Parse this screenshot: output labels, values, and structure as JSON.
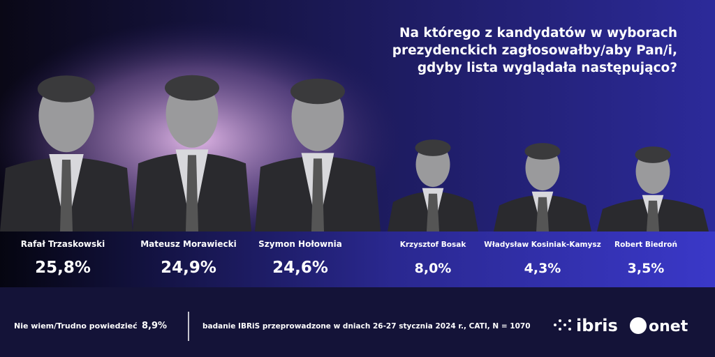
{
  "header": {
    "title_lines": [
      "Na którego z kandydatów w wyborach",
      "prezydenckich zagłosowałby/aby Pan/i,",
      "gdyby lista wyglądała następująco?"
    ]
  },
  "candidates": [
    {
      "name": "Rafał Trzaskowski",
      "result": "25,8%"
    },
    {
      "name": "Mateusz Morawiecki",
      "result": "24,9%"
    },
    {
      "name": "Szymon Hołownia",
      "result": "24,6%"
    },
    {
      "name": "Krzysztof Bosak",
      "result": "8,0%"
    },
    {
      "name": "Władysław Kosiniak-Kamysz",
      "result": "4,3%"
    },
    {
      "name": "Robert Biedroń",
      "result": "3,5%"
    }
  ],
  "other": {
    "label": "Nie wiem/Trudno powiedzieć",
    "result": "8,9%"
  },
  "footer": {
    "note": "badanie IBRiS przeprowadzone w dniach 26-27 stycznia 2024 r., CATI, N = 1070",
    "logo_ibris": "ibris",
    "logo_onet": "onet"
  }
}
